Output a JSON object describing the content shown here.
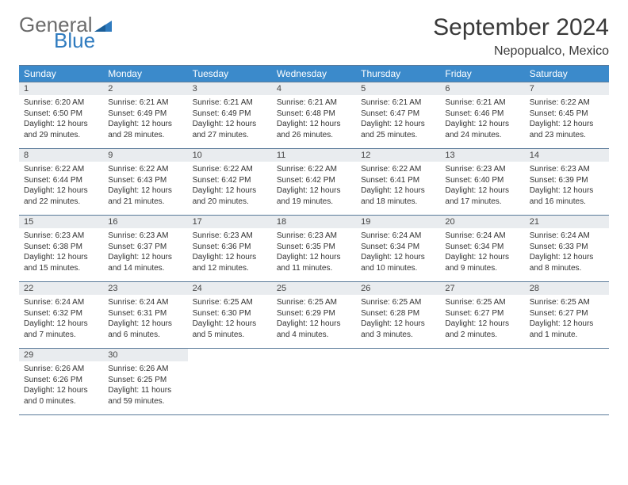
{
  "brand": {
    "general": "General",
    "blue": "Blue"
  },
  "header": {
    "month_title": "September 2024",
    "location": "Nepopualco, Mexico"
  },
  "colors": {
    "header_bg": "#3b8acb",
    "header_text": "#ffffff",
    "daynum_bg": "#e9ecef",
    "border": "#5a7a99",
    "brand_gray": "#6b6b6b",
    "brand_blue": "#2f7bbf"
  },
  "day_labels": [
    "Sunday",
    "Monday",
    "Tuesday",
    "Wednesday",
    "Thursday",
    "Friday",
    "Saturday"
  ],
  "days": [
    {
      "n": "1",
      "sr": "Sunrise: 6:20 AM",
      "ss": "Sunset: 6:50 PM",
      "d1": "Daylight: 12 hours",
      "d2": "and 29 minutes."
    },
    {
      "n": "2",
      "sr": "Sunrise: 6:21 AM",
      "ss": "Sunset: 6:49 PM",
      "d1": "Daylight: 12 hours",
      "d2": "and 28 minutes."
    },
    {
      "n": "3",
      "sr": "Sunrise: 6:21 AM",
      "ss": "Sunset: 6:49 PM",
      "d1": "Daylight: 12 hours",
      "d2": "and 27 minutes."
    },
    {
      "n": "4",
      "sr": "Sunrise: 6:21 AM",
      "ss": "Sunset: 6:48 PM",
      "d1": "Daylight: 12 hours",
      "d2": "and 26 minutes."
    },
    {
      "n": "5",
      "sr": "Sunrise: 6:21 AM",
      "ss": "Sunset: 6:47 PM",
      "d1": "Daylight: 12 hours",
      "d2": "and 25 minutes."
    },
    {
      "n": "6",
      "sr": "Sunrise: 6:21 AM",
      "ss": "Sunset: 6:46 PM",
      "d1": "Daylight: 12 hours",
      "d2": "and 24 minutes."
    },
    {
      "n": "7",
      "sr": "Sunrise: 6:22 AM",
      "ss": "Sunset: 6:45 PM",
      "d1": "Daylight: 12 hours",
      "d2": "and 23 minutes."
    },
    {
      "n": "8",
      "sr": "Sunrise: 6:22 AM",
      "ss": "Sunset: 6:44 PM",
      "d1": "Daylight: 12 hours",
      "d2": "and 22 minutes."
    },
    {
      "n": "9",
      "sr": "Sunrise: 6:22 AM",
      "ss": "Sunset: 6:43 PM",
      "d1": "Daylight: 12 hours",
      "d2": "and 21 minutes."
    },
    {
      "n": "10",
      "sr": "Sunrise: 6:22 AM",
      "ss": "Sunset: 6:42 PM",
      "d1": "Daylight: 12 hours",
      "d2": "and 20 minutes."
    },
    {
      "n": "11",
      "sr": "Sunrise: 6:22 AM",
      "ss": "Sunset: 6:42 PM",
      "d1": "Daylight: 12 hours",
      "d2": "and 19 minutes."
    },
    {
      "n": "12",
      "sr": "Sunrise: 6:22 AM",
      "ss": "Sunset: 6:41 PM",
      "d1": "Daylight: 12 hours",
      "d2": "and 18 minutes."
    },
    {
      "n": "13",
      "sr": "Sunrise: 6:23 AM",
      "ss": "Sunset: 6:40 PM",
      "d1": "Daylight: 12 hours",
      "d2": "and 17 minutes."
    },
    {
      "n": "14",
      "sr": "Sunrise: 6:23 AM",
      "ss": "Sunset: 6:39 PM",
      "d1": "Daylight: 12 hours",
      "d2": "and 16 minutes."
    },
    {
      "n": "15",
      "sr": "Sunrise: 6:23 AM",
      "ss": "Sunset: 6:38 PM",
      "d1": "Daylight: 12 hours",
      "d2": "and 15 minutes."
    },
    {
      "n": "16",
      "sr": "Sunrise: 6:23 AM",
      "ss": "Sunset: 6:37 PM",
      "d1": "Daylight: 12 hours",
      "d2": "and 14 minutes."
    },
    {
      "n": "17",
      "sr": "Sunrise: 6:23 AM",
      "ss": "Sunset: 6:36 PM",
      "d1": "Daylight: 12 hours",
      "d2": "and 12 minutes."
    },
    {
      "n": "18",
      "sr": "Sunrise: 6:23 AM",
      "ss": "Sunset: 6:35 PM",
      "d1": "Daylight: 12 hours",
      "d2": "and 11 minutes."
    },
    {
      "n": "19",
      "sr": "Sunrise: 6:24 AM",
      "ss": "Sunset: 6:34 PM",
      "d1": "Daylight: 12 hours",
      "d2": "and 10 minutes."
    },
    {
      "n": "20",
      "sr": "Sunrise: 6:24 AM",
      "ss": "Sunset: 6:34 PM",
      "d1": "Daylight: 12 hours",
      "d2": "and 9 minutes."
    },
    {
      "n": "21",
      "sr": "Sunrise: 6:24 AM",
      "ss": "Sunset: 6:33 PM",
      "d1": "Daylight: 12 hours",
      "d2": "and 8 minutes."
    },
    {
      "n": "22",
      "sr": "Sunrise: 6:24 AM",
      "ss": "Sunset: 6:32 PM",
      "d1": "Daylight: 12 hours",
      "d2": "and 7 minutes."
    },
    {
      "n": "23",
      "sr": "Sunrise: 6:24 AM",
      "ss": "Sunset: 6:31 PM",
      "d1": "Daylight: 12 hours",
      "d2": "and 6 minutes."
    },
    {
      "n": "24",
      "sr": "Sunrise: 6:25 AM",
      "ss": "Sunset: 6:30 PM",
      "d1": "Daylight: 12 hours",
      "d2": "and 5 minutes."
    },
    {
      "n": "25",
      "sr": "Sunrise: 6:25 AM",
      "ss": "Sunset: 6:29 PM",
      "d1": "Daylight: 12 hours",
      "d2": "and 4 minutes."
    },
    {
      "n": "26",
      "sr": "Sunrise: 6:25 AM",
      "ss": "Sunset: 6:28 PM",
      "d1": "Daylight: 12 hours",
      "d2": "and 3 minutes."
    },
    {
      "n": "27",
      "sr": "Sunrise: 6:25 AM",
      "ss": "Sunset: 6:27 PM",
      "d1": "Daylight: 12 hours",
      "d2": "and 2 minutes."
    },
    {
      "n": "28",
      "sr": "Sunrise: 6:25 AM",
      "ss": "Sunset: 6:27 PM",
      "d1": "Daylight: 12 hours",
      "d2": "and 1 minute."
    },
    {
      "n": "29",
      "sr": "Sunrise: 6:26 AM",
      "ss": "Sunset: 6:26 PM",
      "d1": "Daylight: 12 hours",
      "d2": "and 0 minutes."
    },
    {
      "n": "30",
      "sr": "Sunrise: 6:26 AM",
      "ss": "Sunset: 6:25 PM",
      "d1": "Daylight: 11 hours",
      "d2": "and 59 minutes."
    }
  ]
}
